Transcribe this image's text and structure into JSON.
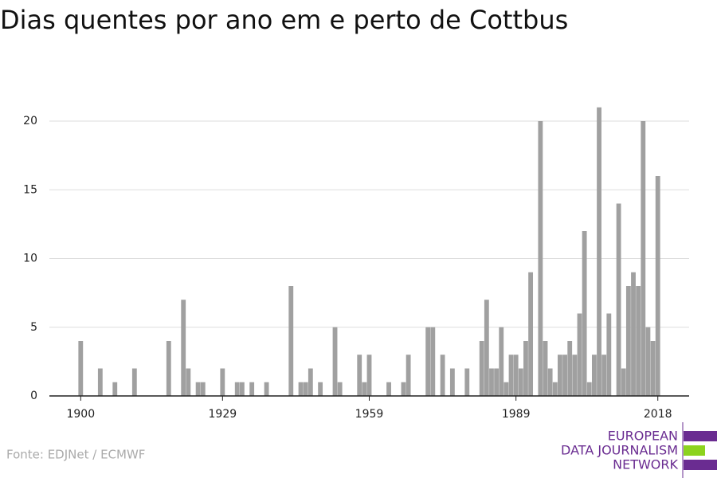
{
  "chart_data": {
    "type": "bar",
    "title": "Dias quentes por ano em e perto de Cottbus",
    "source": "Fonte: EDJNet / ECMWF",
    "logo": [
      "EUROPEAN",
      "DATA JOURNALISM",
      "NETWORK"
    ],
    "color": "#a0a0a0",
    "x": [
      1900,
      1904,
      1907,
      1911,
      1918,
      1921,
      1922,
      1924,
      1925,
      1929,
      1932,
      1933,
      1935,
      1938,
      1943,
      1945,
      1946,
      1947,
      1949,
      1952,
      1953,
      1957,
      1958,
      1959,
      1963,
      1966,
      1967,
      1971,
      1972,
      1974,
      1976,
      1979,
      1982,
      1983,
      1984,
      1985,
      1986,
      1987,
      1988,
      1989,
      1990,
      1991,
      1992,
      1994,
      1995,
      1996,
      1997,
      1998,
      1999,
      2000,
      2001,
      2002,
      2003,
      2004,
      2005,
      2006,
      2007,
      2008,
      2010,
      2011,
      2012,
      2013,
      2014,
      2015,
      2016,
      2017,
      2018
    ],
    "values": [
      4,
      2,
      1,
      2,
      4,
      7,
      2,
      1,
      1,
      2,
      1,
      1,
      1,
      1,
      8,
      1,
      1,
      2,
      1,
      5,
      1,
      3,
      1,
      3,
      1,
      1,
      3,
      5,
      5,
      3,
      2,
      2,
      4,
      7,
      2,
      2,
      5,
      1,
      3,
      3,
      2,
      4,
      9,
      20,
      4,
      2,
      1,
      3,
      3,
      4,
      3,
      6,
      12,
      1,
      3,
      21,
      3,
      6,
      14,
      2,
      8,
      9,
      8,
      20,
      5,
      4,
      16
    ],
    "xlim": [
      1893.6,
      2024.4
    ],
    "xticks": [
      1900,
      1929,
      1959,
      1989,
      2018
    ],
    "ylim": [
      0,
      22
    ],
    "yticks": [
      0,
      5,
      10,
      15,
      20
    ],
    "grid": true
  }
}
